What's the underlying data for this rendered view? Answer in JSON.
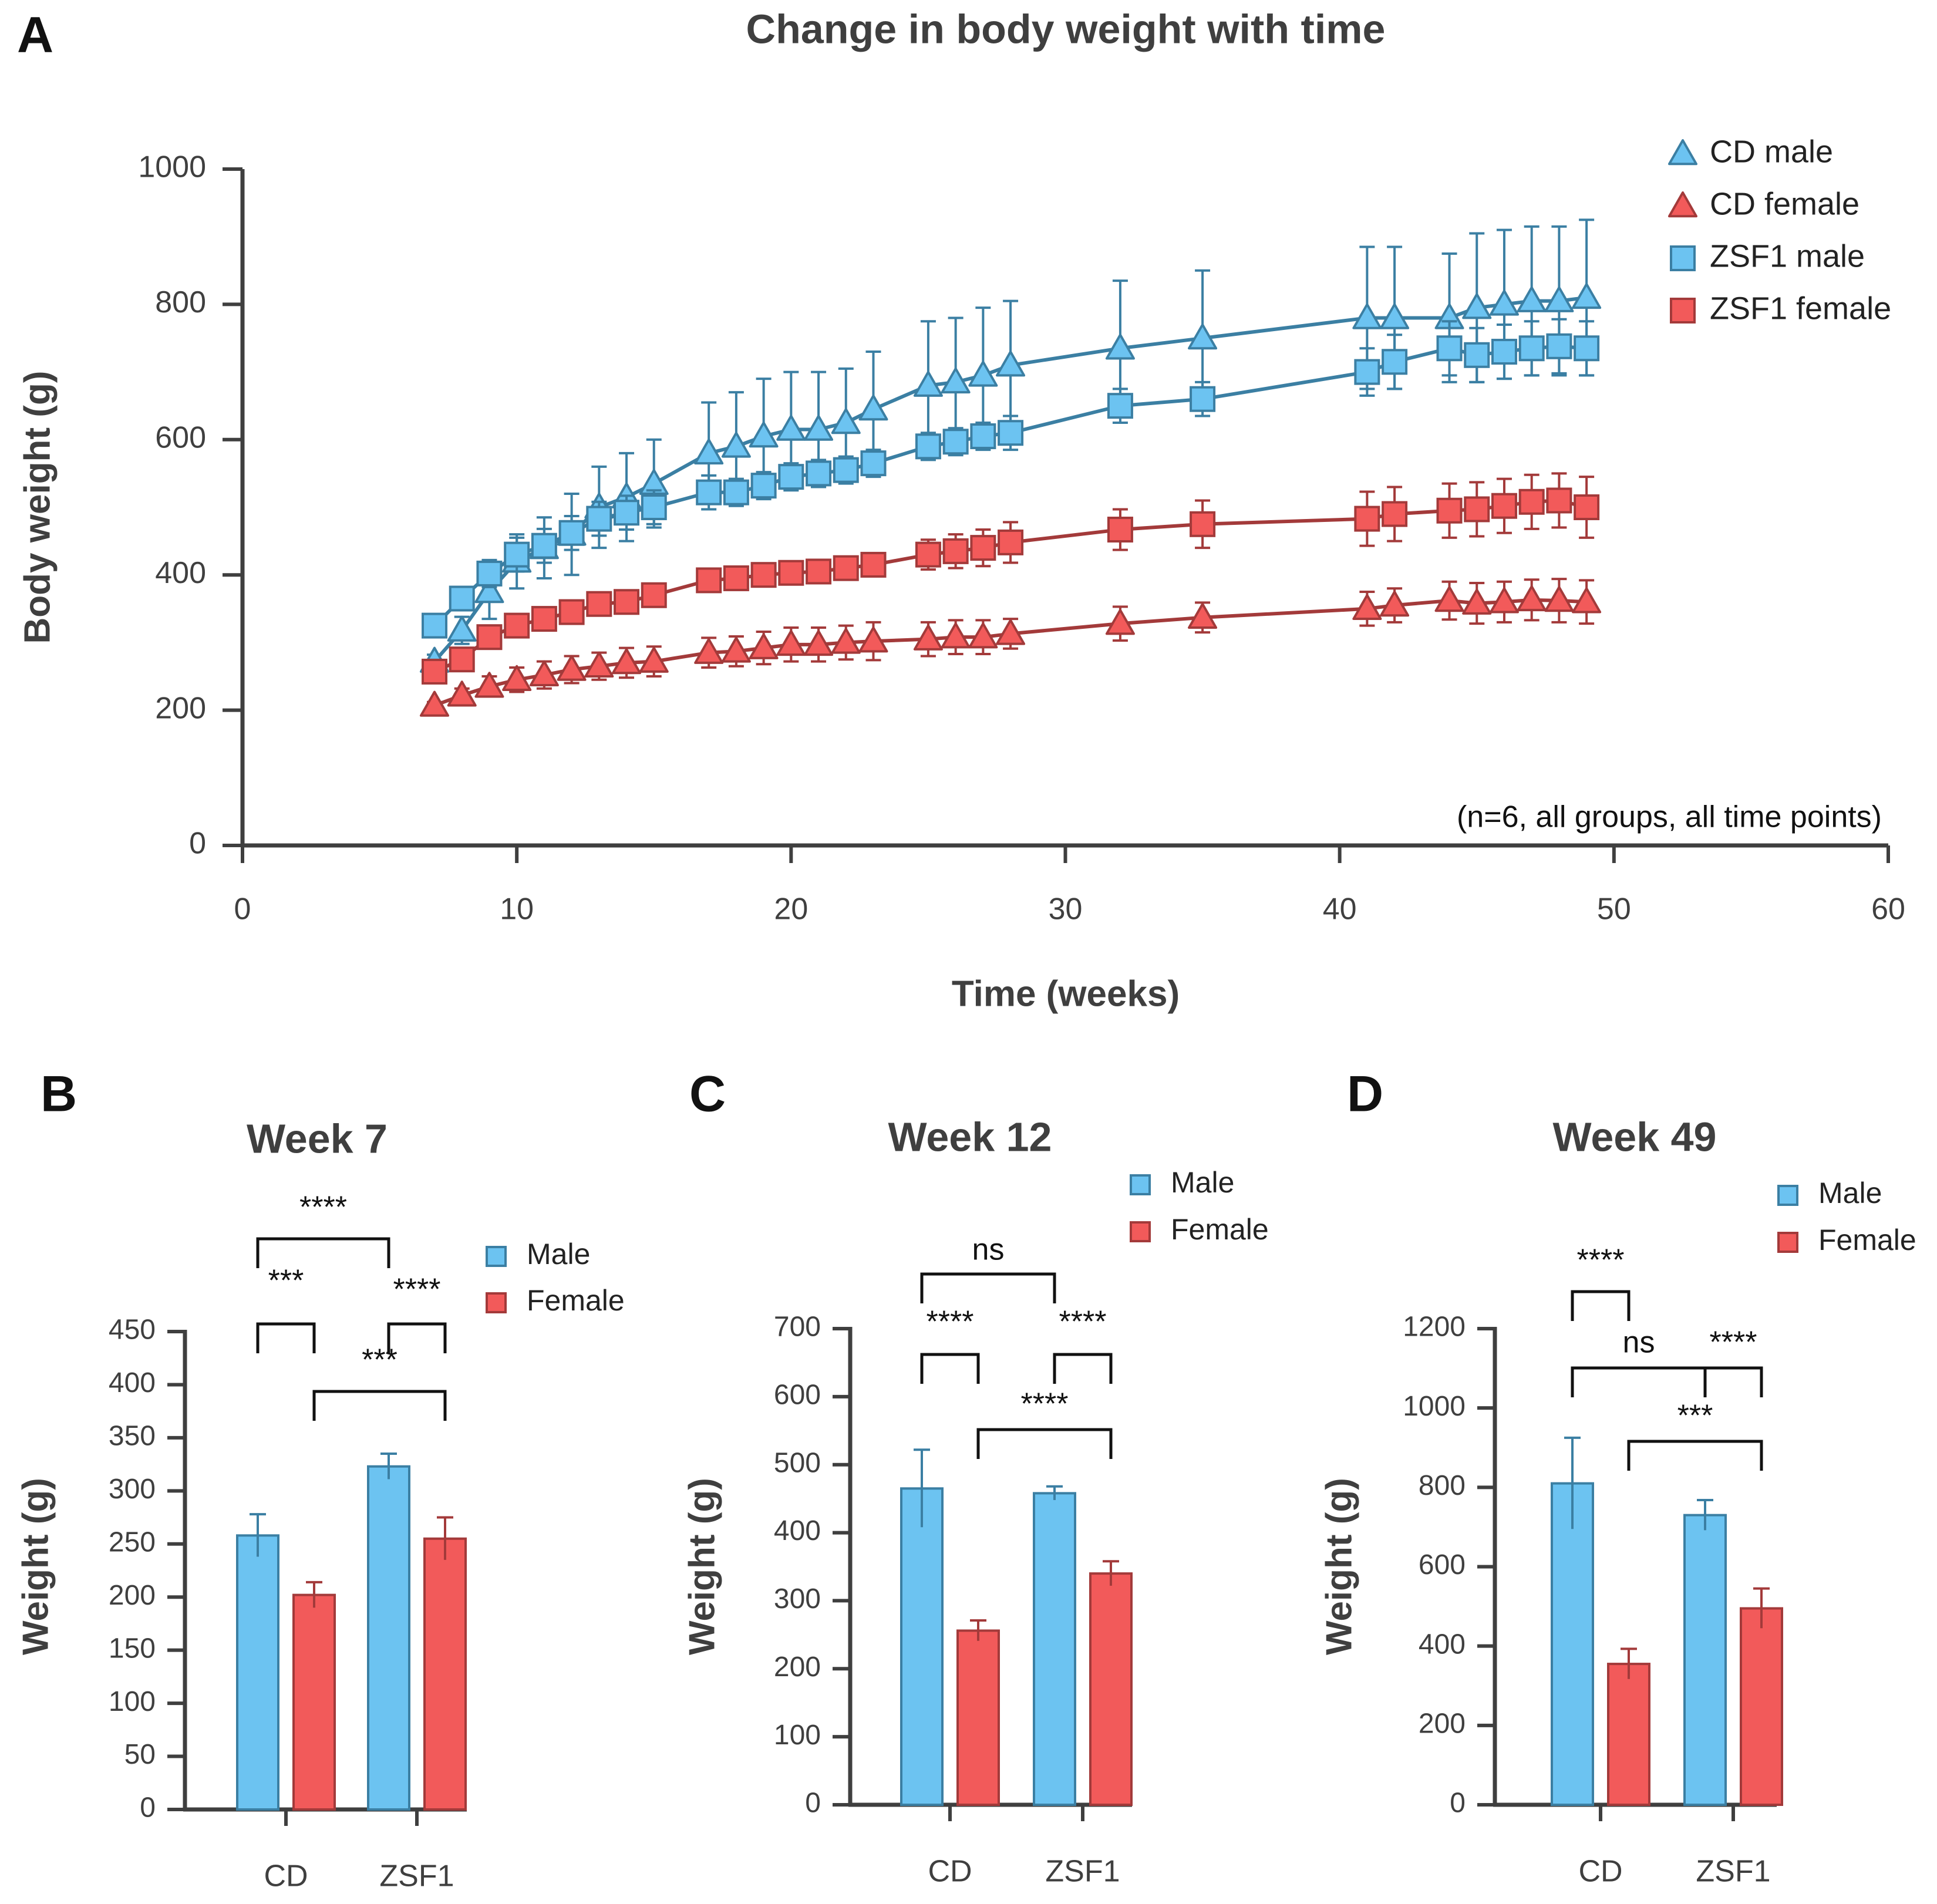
{
  "colors": {
    "axis": "#3f3f3f",
    "text": "#3f3f3f",
    "male_fill": "#6cc3f1",
    "male_line": "#3b7fa3",
    "female_fill": "#f25a5a",
    "female_line": "#a33a3a"
  },
  "chart_data": [
    {
      "panel": "A",
      "type": "line",
      "title": "Change in body weight with time",
      "xlabel": "Time (weeks)",
      "ylabel": "Body weight (g)",
      "xlim": [
        0,
        60
      ],
      "ylim": [
        0,
        1000
      ],
      "xticks": [
        0,
        10,
        20,
        30,
        40,
        50,
        60
      ],
      "yticks": [
        0,
        200,
        400,
        600,
        800,
        1000
      ],
      "legend_position": "top-right",
      "annotation": "(n=6, all groups, all time points)",
      "x": [
        7,
        8,
        9,
        10,
        11,
        12,
        13,
        14,
        15,
        17,
        18,
        19,
        20,
        21,
        22,
        23,
        25,
        26,
        27,
        28,
        32,
        35,
        41,
        42,
        44,
        45,
        46,
        47,
        48,
        49
      ],
      "series": [
        {
          "name": "CD male",
          "marker": "triangle",
          "color": "blue",
          "values": [
            272,
            318,
            375,
            420,
            440,
            460,
            500,
            515,
            535,
            580,
            590,
            605,
            615,
            615,
            625,
            645,
            680,
            685,
            695,
            710,
            735,
            750,
            780,
            780,
            780,
            795,
            800,
            805,
            805,
            810
          ],
          "errors": [
            10,
            20,
            40,
            40,
            45,
            60,
            60,
            65,
            65,
            75,
            80,
            85,
            85,
            85,
            80,
            85,
            95,
            95,
            100,
            95,
            100,
            100,
            105,
            105,
            95,
            110,
            110,
            110,
            110,
            115
          ]
        },
        {
          "name": "CD female",
          "marker": "triangle",
          "color": "red",
          "values": [
            207,
            222,
            235,
            245,
            252,
            260,
            265,
            270,
            272,
            285,
            287,
            292,
            297,
            297,
            300,
            302,
            305,
            308,
            308,
            313,
            328,
            337,
            350,
            355,
            362,
            358,
            360,
            363,
            362,
            360
          ],
          "errors": [
            5,
            10,
            15,
            18,
            20,
            20,
            20,
            22,
            22,
            22,
            22,
            24,
            25,
            25,
            25,
            28,
            25,
            25,
            25,
            22,
            25,
            22,
            25,
            25,
            28,
            30,
            30,
            30,
            32,
            32
          ]
        },
        {
          "name": "ZSF1 male",
          "marker": "square",
          "color": "blue",
          "values": [
            325,
            365,
            402,
            430,
            443,
            462,
            483,
            492,
            500,
            522,
            522,
            532,
            545,
            550,
            555,
            565,
            590,
            597,
            605,
            610,
            650,
            660,
            700,
            715,
            735,
            725,
            730,
            735,
            738,
            735
          ],
          "errors": [
            10,
            15,
            20,
            25,
            25,
            25,
            25,
            25,
            25,
            25,
            20,
            20,
            20,
            20,
            20,
            20,
            20,
            20,
            20,
            25,
            25,
            25,
            35,
            40,
            40,
            40,
            40,
            40,
            40,
            40
          ]
        },
        {
          "name": "ZSF1 female",
          "marker": "square",
          "color": "red",
          "values": [
            257,
            275,
            308,
            325,
            335,
            345,
            357,
            360,
            370,
            392,
            395,
            400,
            403,
            405,
            410,
            415,
            430,
            435,
            440,
            448,
            467,
            475,
            483,
            490,
            495,
            497,
            502,
            508,
            510,
            500
          ],
          "errors": [
            8,
            10,
            12,
            15,
            15,
            15,
            15,
            15,
            15,
            15,
            15,
            15,
            15,
            15,
            15,
            15,
            22,
            25,
            27,
            30,
            30,
            35,
            40,
            40,
            40,
            40,
            40,
            40,
            40,
            45
          ]
        }
      ]
    },
    {
      "panel": "B",
      "type": "bar",
      "title": "Week 7",
      "ylabel": "Weight (g)",
      "categories": [
        "CD",
        "ZSF1"
      ],
      "ylim": [
        0,
        450
      ],
      "yticks": [
        0,
        50,
        100,
        150,
        200,
        250,
        300,
        350,
        400,
        450
      ],
      "legend_position": "top-right",
      "series": [
        {
          "name": "Male",
          "values": [
            258,
            323
          ],
          "errors": [
            20,
            12
          ]
        },
        {
          "name": "Female",
          "values": [
            202,
            255
          ],
          "errors": [
            12,
            20
          ]
        }
      ],
      "significance": [
        {
          "a": [
            0,
            0
          ],
          "b": [
            1,
            0
          ],
          "label": "****"
        },
        {
          "a": [
            0,
            0
          ],
          "b": [
            0,
            1
          ],
          "label": "***"
        },
        {
          "a": [
            1,
            0
          ],
          "b": [
            1,
            1
          ],
          "label": "****"
        },
        {
          "a": [
            0,
            1
          ],
          "b": [
            1,
            1
          ],
          "label": "***"
        }
      ]
    },
    {
      "panel": "C",
      "type": "bar",
      "title": "Week 12",
      "ylabel": "Weight (g)",
      "categories": [
        "CD",
        "ZSF1"
      ],
      "ylim": [
        0,
        700
      ],
      "yticks": [
        0,
        100,
        200,
        300,
        400,
        500,
        600,
        700
      ],
      "legend_position": "top-right",
      "series": [
        {
          "name": "Male",
          "values": [
            465,
            458
          ],
          "errors": [
            57,
            10
          ]
        },
        {
          "name": "Female",
          "values": [
            256,
            340
          ],
          "errors": [
            15,
            18
          ]
        }
      ],
      "significance": [
        {
          "a": [
            0,
            0
          ],
          "b": [
            1,
            0
          ],
          "label": "ns"
        },
        {
          "a": [
            0,
            0
          ],
          "b": [
            0,
            1
          ],
          "label": "****"
        },
        {
          "a": [
            1,
            0
          ],
          "b": [
            1,
            1
          ],
          "label": "****"
        },
        {
          "a": [
            0,
            1
          ],
          "b": [
            1,
            1
          ],
          "label": "****"
        }
      ]
    },
    {
      "panel": "D",
      "type": "bar",
      "title": "Week 49",
      "ylabel": "Weight (g)",
      "categories": [
        "CD",
        "ZSF1"
      ],
      "ylim": [
        0,
        1200
      ],
      "yticks": [
        0,
        200,
        400,
        600,
        800,
        1000,
        1200
      ],
      "legend_position": "top-right",
      "series": [
        {
          "name": "Male",
          "values": [
            810,
            730
          ],
          "errors": [
            115,
            38
          ]
        },
        {
          "name": "Female",
          "values": [
            355,
            495
          ],
          "errors": [
            38,
            50
          ]
        }
      ],
      "significance": [
        {
          "a": [
            0,
            0
          ],
          "b": [
            0,
            1
          ],
          "label": "****"
        },
        {
          "a": [
            0,
            0
          ],
          "b": [
            1,
            0
          ],
          "label": "ns"
        },
        {
          "a": [
            1,
            0
          ],
          "b": [
            1,
            1
          ],
          "label": "****"
        },
        {
          "a": [
            0,
            1
          ],
          "b": [
            1,
            1
          ],
          "label": "***"
        }
      ]
    }
  ]
}
